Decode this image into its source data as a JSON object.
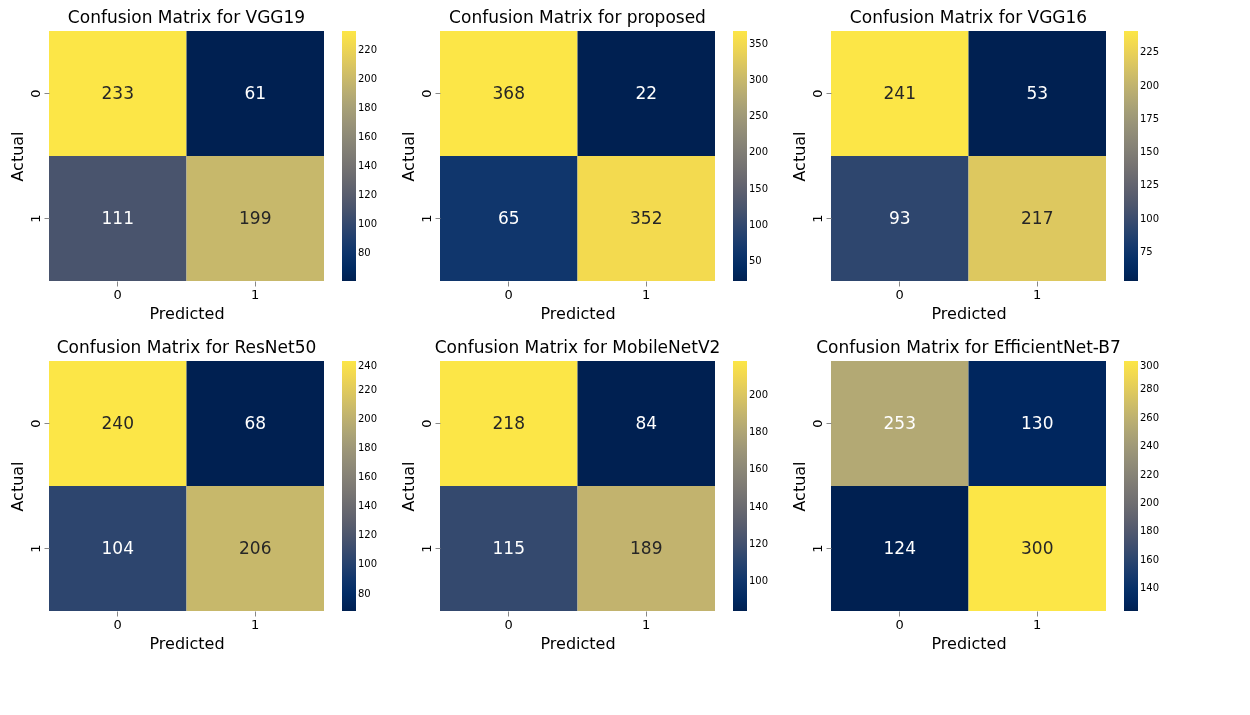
{
  "chart_data": [
    {
      "type": "heatmap",
      "title": "Confusion Matrix for VGG19",
      "xlabel": "Predicted",
      "ylabel": "Actual",
      "categories": [
        "0",
        "1"
      ],
      "y_categories": [
        "0",
        "1"
      ],
      "cells": [
        [
          233,
          61
        ],
        [
          111,
          199
        ]
      ],
      "data_labels": true,
      "clim": [
        61,
        233
      ],
      "cticks": [
        80,
        100,
        120,
        140,
        160,
        180,
        200,
        220
      ]
    },
    {
      "type": "heatmap",
      "title": "Confusion Matrix for proposed",
      "xlabel": "Predicted",
      "ylabel": "Actual",
      "categories": [
        "0",
        "1"
      ],
      "y_categories": [
        "0",
        "1"
      ],
      "cells": [
        [
          368,
          22
        ],
        [
          65,
          352
        ]
      ],
      "data_labels": true,
      "clim": [
        22,
        368
      ],
      "cticks": [
        50,
        100,
        150,
        200,
        250,
        300,
        350
      ]
    },
    {
      "type": "heatmap",
      "title": "Confusion Matrix for VGG16",
      "xlabel": "Predicted",
      "ylabel": "Actual",
      "categories": [
        "0",
        "1"
      ],
      "y_categories": [
        "0",
        "1"
      ],
      "cells": [
        [
          241,
          53
        ],
        [
          93,
          217
        ]
      ],
      "data_labels": true,
      "clim": [
        53,
        241
      ],
      "cticks": [
        75,
        100,
        125,
        150,
        175,
        200,
        225
      ]
    },
    {
      "type": "heatmap",
      "title": "Confusion Matrix for ResNet50",
      "xlabel": "Predicted",
      "ylabel": "Actual",
      "categories": [
        "0",
        "1"
      ],
      "y_categories": [
        "0",
        "1"
      ],
      "cells": [
        [
          240,
          68
        ],
        [
          104,
          206
        ]
      ],
      "data_labels": true,
      "clim": [
        68,
        240
      ],
      "cticks": [
        80,
        100,
        120,
        140,
        160,
        180,
        200,
        220,
        240
      ]
    },
    {
      "type": "heatmap",
      "title": "Confusion Matrix for MobileNetV2",
      "xlabel": "Predicted",
      "ylabel": "Actual",
      "categories": [
        "0",
        "1"
      ],
      "y_categories": [
        "0",
        "1"
      ],
      "cells": [
        [
          218,
          84
        ],
        [
          115,
          189
        ]
      ],
      "data_labels": true,
      "clim": [
        84,
        218
      ],
      "cticks": [
        100,
        120,
        140,
        160,
        180,
        200
      ]
    },
    {
      "type": "heatmap",
      "title": "Confusion Matrix for EfficientNet-B7",
      "xlabel": "Predicted",
      "ylabel": "Actual",
      "categories": [
        "0",
        "1"
      ],
      "y_categories": [
        "0",
        "1"
      ],
      "cells": [
        [
          253,
          130
        ],
        [
          124,
          300
        ]
      ],
      "data_labels": true,
      "clim": [
        124,
        300
      ],
      "cticks": [
        140,
        160,
        180,
        200,
        220,
        240,
        260,
        280,
        300
      ]
    }
  ]
}
